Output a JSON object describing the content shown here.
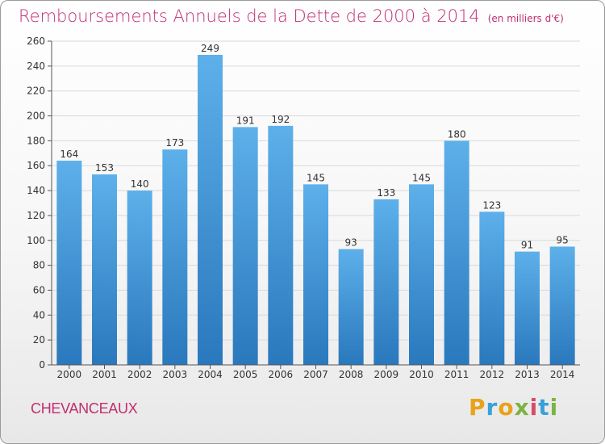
{
  "title": "Remboursements Annuels de la Dette de 2000 à 2014",
  "unit": "(en milliers d'€)",
  "commune": "CHEVANCEAUX",
  "logo": {
    "text": "Proxiti",
    "letters": [
      "P",
      "r",
      "o",
      "x",
      "i",
      "t",
      "i"
    ],
    "colors": [
      "#e8a21a",
      "#3aa0d8",
      "#e8a21a",
      "#7cb342",
      "#d84a6a",
      "#3aa0d8",
      "#7cb342"
    ]
  },
  "colors": {
    "title": "#c02e72",
    "bar_top": "#5db0ea",
    "bar_bottom": "#2a78bd",
    "grid": "#d9d9d9",
    "axis": "#555555"
  },
  "chart_data": {
    "type": "bar",
    "title": "Remboursements Annuels de la Dette de 2000 à 2014",
    "ylabel": "",
    "xlabel": "",
    "categories": [
      "2000",
      "2001",
      "2002",
      "2003",
      "2004",
      "2005",
      "2006",
      "2007",
      "2008",
      "2009",
      "2010",
      "2011",
      "2012",
      "2013",
      "2014"
    ],
    "values": [
      164,
      153,
      140,
      173,
      249,
      191,
      192,
      145,
      93,
      133,
      145,
      180,
      123,
      91,
      95
    ],
    "ylim": [
      0,
      260
    ],
    "yticks": [
      0,
      20,
      40,
      60,
      80,
      100,
      120,
      140,
      160,
      180,
      200,
      220,
      240,
      260
    ],
    "grid": true,
    "data_labels": true
  }
}
